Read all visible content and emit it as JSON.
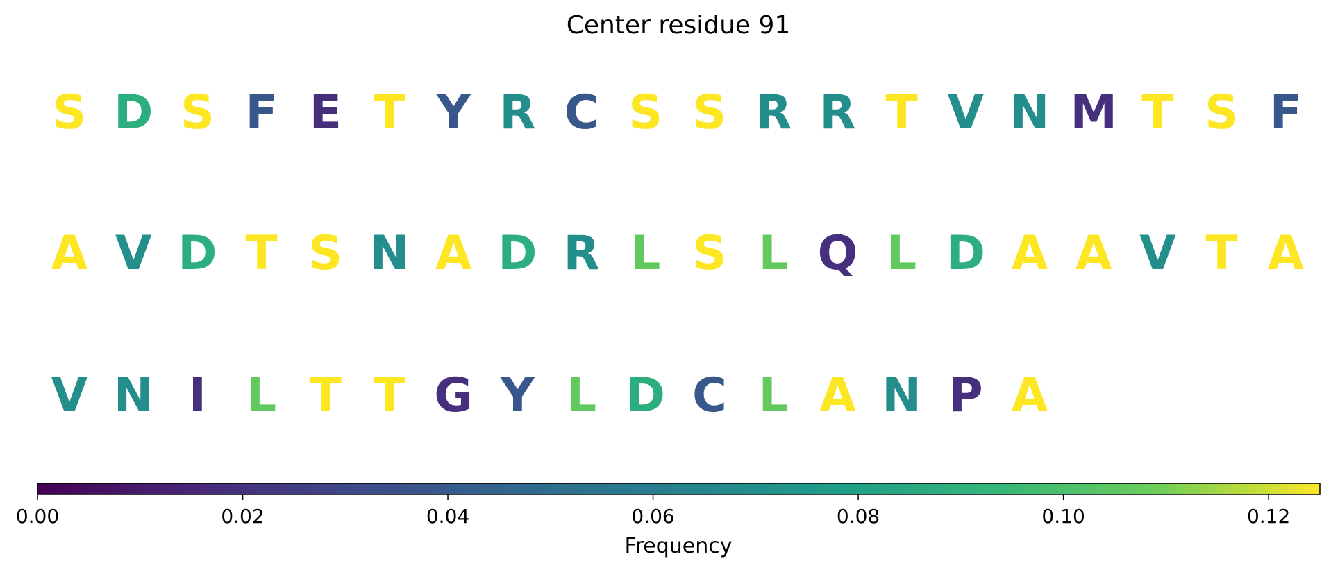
{
  "chart_data": {
    "type": "heatmap",
    "title": "Center residue 91",
    "colormap": "viridis",
    "rows": [
      [
        {
          "residue": "S",
          "frequency": 0.125
        },
        {
          "residue": "D",
          "frequency": 0.088
        },
        {
          "residue": "S",
          "frequency": 0.125
        },
        {
          "residue": "F",
          "frequency": 0.038
        },
        {
          "residue": "E",
          "frequency": 0.019
        },
        {
          "residue": "T",
          "frequency": 0.125
        },
        {
          "residue": "Y",
          "frequency": 0.038
        },
        {
          "residue": "R",
          "frequency": 0.069
        },
        {
          "residue": "C",
          "frequency": 0.038
        },
        {
          "residue": "S",
          "frequency": 0.125
        },
        {
          "residue": "S",
          "frequency": 0.125
        },
        {
          "residue": "R",
          "frequency": 0.069
        },
        {
          "residue": "R",
          "frequency": 0.069
        },
        {
          "residue": "T",
          "frequency": 0.125
        },
        {
          "residue": "V",
          "frequency": 0.069
        },
        {
          "residue": "N",
          "frequency": 0.069
        },
        {
          "residue": "M",
          "frequency": 0.019
        },
        {
          "residue": "T",
          "frequency": 0.125
        },
        {
          "residue": "S",
          "frequency": 0.125
        },
        {
          "residue": "F",
          "frequency": 0.038
        }
      ],
      [
        {
          "residue": "A",
          "frequency": 0.125
        },
        {
          "residue": "V",
          "frequency": 0.069
        },
        {
          "residue": "D",
          "frequency": 0.088
        },
        {
          "residue": "T",
          "frequency": 0.125
        },
        {
          "residue": "S",
          "frequency": 0.125
        },
        {
          "residue": "N",
          "frequency": 0.069
        },
        {
          "residue": "A",
          "frequency": 0.125
        },
        {
          "residue": "D",
          "frequency": 0.088
        },
        {
          "residue": "R",
          "frequency": 0.069
        },
        {
          "residue": "L",
          "frequency": 0.106
        },
        {
          "residue": "S",
          "frequency": 0.125
        },
        {
          "residue": "L",
          "frequency": 0.106
        },
        {
          "residue": "Q",
          "frequency": 0.019
        },
        {
          "residue": "L",
          "frequency": 0.106
        },
        {
          "residue": "D",
          "frequency": 0.088
        },
        {
          "residue": "A",
          "frequency": 0.125
        },
        {
          "residue": "A",
          "frequency": 0.125
        },
        {
          "residue": "V",
          "frequency": 0.069
        },
        {
          "residue": "T",
          "frequency": 0.125
        },
        {
          "residue": "A",
          "frequency": 0.125
        }
      ],
      [
        {
          "residue": "V",
          "frequency": 0.069
        },
        {
          "residue": "N",
          "frequency": 0.069
        },
        {
          "residue": "I",
          "frequency": 0.019
        },
        {
          "residue": "L",
          "frequency": 0.106
        },
        {
          "residue": "T",
          "frequency": 0.125
        },
        {
          "residue": "T",
          "frequency": 0.125
        },
        {
          "residue": "G",
          "frequency": 0.019
        },
        {
          "residue": "Y",
          "frequency": 0.038
        },
        {
          "residue": "L",
          "frequency": 0.106
        },
        {
          "residue": "D",
          "frequency": 0.088
        },
        {
          "residue": "C",
          "frequency": 0.038
        },
        {
          "residue": "L",
          "frequency": 0.106
        },
        {
          "residue": "A",
          "frequency": 0.125
        },
        {
          "residue": "N",
          "frequency": 0.069
        },
        {
          "residue": "P",
          "frequency": 0.019
        },
        {
          "residue": "A",
          "frequency": 0.125
        }
      ]
    ],
    "colorbar": {
      "label": "Frequency",
      "range": [
        0.0,
        0.125
      ],
      "ticks": [
        0.0,
        0.02,
        0.04,
        0.06,
        0.08,
        0.1,
        0.12
      ],
      "tick_labels": [
        "0.00",
        "0.02",
        "0.04",
        "0.06",
        "0.08",
        "0.10",
        "0.12"
      ],
      "orientation": "horizontal",
      "position": "bottom"
    }
  }
}
